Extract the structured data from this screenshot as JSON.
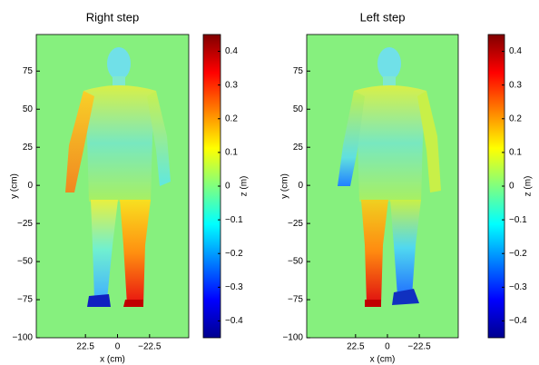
{
  "chart_data": [
    {
      "type": "image",
      "title": "Right step",
      "xlabel": "x (cm)",
      "ylabel": "y (cm)",
      "xlim": [
        57,
        -50
      ],
      "xticks": [
        22.5,
        0,
        {
          "value": -22.5,
          "label": "−22.5"
        }
      ],
      "ylim": [
        -100,
        99
      ],
      "yticks": [
        {
          "value": -100,
          "label": "−100"
        },
        {
          "value": -75,
          "label": "−75"
        },
        {
          "value": -50,
          "label": "−50"
        },
        {
          "value": -25,
          "label": "−25"
        },
        0,
        25,
        50,
        75
      ],
      "colorbar": {
        "label": "z (m)",
        "colormap": "jet",
        "lim": [
          -0.45,
          0.45
        ],
        "ticks": [
          {
            "value": -0.4,
            "label": "−0.4"
          },
          {
            "value": -0.3,
            "label": "−0.3"
          },
          {
            "value": -0.2,
            "label": "−0.2"
          },
          {
            "value": -0.1,
            "label": "−0.1"
          },
          0,
          0.1,
          0.2,
          0.3,
          0.4
        ]
      }
    },
    {
      "type": "image",
      "title": "Left step",
      "xlabel": "x (cm)",
      "ylabel": "y (cm)",
      "xlim": [
        57,
        -50
      ],
      "xticks": [
        22.5,
        0,
        {
          "value": -22.5,
          "label": "−22.5"
        }
      ],
      "ylim": [
        -100,
        99
      ],
      "yticks": [
        {
          "value": -100,
          "label": "−100"
        },
        {
          "value": -75,
          "label": "−75"
        },
        {
          "value": -50,
          "label": "−50"
        },
        {
          "value": -25,
          "label": "−25"
        },
        0,
        25,
        50,
        75
      ],
      "colorbar": {
        "label": "z (m)",
        "colormap": "jet",
        "lim": [
          -0.45,
          0.45
        ],
        "ticks": [
          {
            "value": -0.4,
            "label": "−0.4"
          },
          {
            "value": -0.3,
            "label": "−0.3"
          },
          {
            "value": -0.2,
            "label": "−0.2"
          },
          {
            "value": -0.1,
            "label": "−0.1"
          },
          0,
          0.1,
          0.2,
          0.3,
          0.4
        ]
      }
    }
  ]
}
